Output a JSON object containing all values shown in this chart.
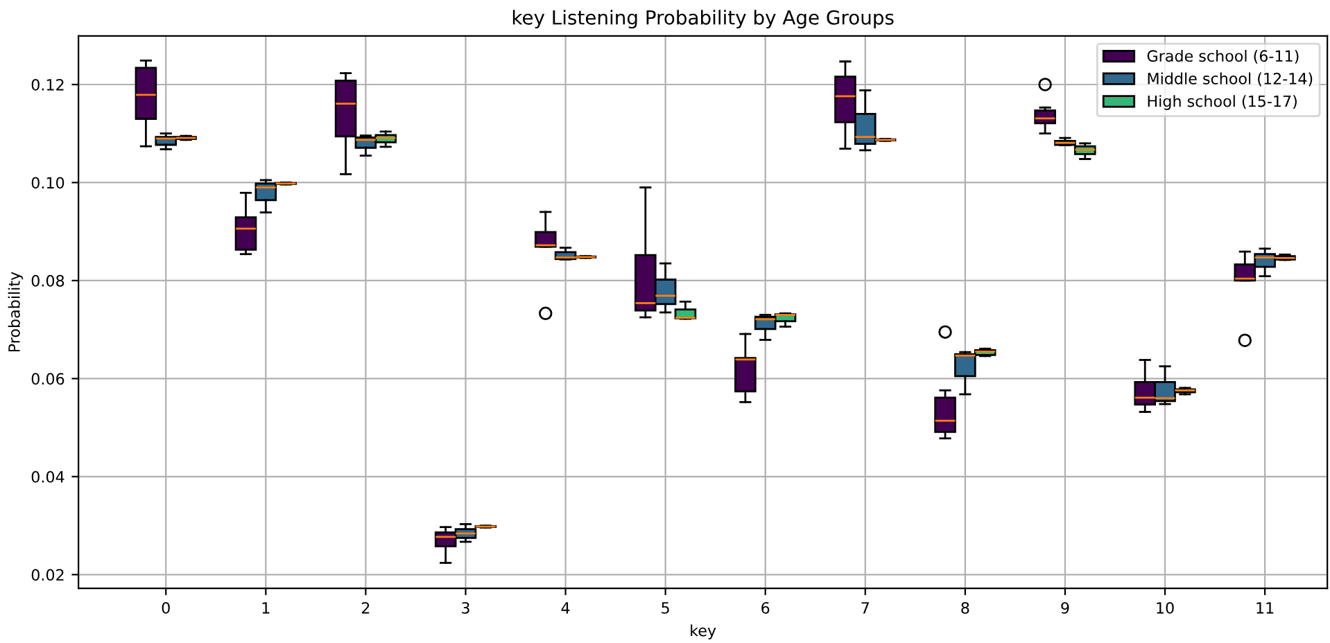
{
  "chart_data": {
    "type": "box",
    "title": "key Listening Probability by Age Groups",
    "xlabel": "key",
    "ylabel": "Probability",
    "categories": [
      "0",
      "1",
      "2",
      "3",
      "4",
      "5",
      "6",
      "7",
      "8",
      "9",
      "10",
      "11"
    ],
    "ylim": [
      0.0172,
      0.1299
    ],
    "yticks": [
      0.02,
      0.04,
      0.06,
      0.08,
      {
        "value": 0.1,
        "label": "0.10"
      },
      0.12
    ],
    "grid": true,
    "legend": "top right",
    "series": [
      {
        "name": "Grade school (6-11)",
        "color": "#440154",
        "boxes": [
          {
            "low": 0.1074,
            "q1": 0.113,
            "median": 0.1179,
            "q3": 0.1234,
            "high": 0.1249
          },
          {
            "low": 0.0854,
            "q1": 0.0863,
            "median": 0.0906,
            "q3": 0.0929,
            "high": 0.0979
          },
          {
            "low": 0.1017,
            "q1": 0.1094,
            "median": 0.1161,
            "q3": 0.1208,
            "high": 0.1223
          },
          {
            "low": 0.0224,
            "q1": 0.0258,
            "median": 0.0277,
            "q3": 0.0286,
            "high": 0.0297
          },
          {
            "low": 0.0869,
            "q1": 0.0869,
            "median": 0.0872,
            "q3": 0.0899,
            "high": 0.094,
            "outliers": [
              0.0733
            ]
          },
          {
            "low": 0.0725,
            "q1": 0.0739,
            "median": 0.0754,
            "q3": 0.0852,
            "high": 0.099
          },
          {
            "low": 0.0552,
            "q1": 0.0574,
            "median": 0.0639,
            "q3": 0.0642,
            "high": 0.0691
          },
          {
            "low": 0.1069,
            "q1": 0.1123,
            "median": 0.1176,
            "q3": 0.1216,
            "high": 0.1247
          },
          {
            "low": 0.0478,
            "q1": 0.0491,
            "median": 0.0514,
            "q3": 0.0561,
            "high": 0.0576,
            "outliers": [
              0.0695
            ]
          },
          {
            "low": 0.11,
            "q1": 0.1121,
            "median": 0.1131,
            "q3": 0.1147,
            "high": 0.1153,
            "outliers": [
              0.12
            ]
          },
          {
            "low": 0.0532,
            "q1": 0.0547,
            "median": 0.0561,
            "q3": 0.0593,
            "high": 0.0638
          },
          {
            "low": 0.08,
            "q1": 0.08,
            "median": 0.0804,
            "q3": 0.0833,
            "high": 0.0859,
            "outliers": [
              0.0678
            ]
          }
        ]
      },
      {
        "name": "Middle school (12-14)",
        "color": "#31688e",
        "boxes": [
          {
            "low": 0.1068,
            "q1": 0.1077,
            "median": 0.109,
            "q3": 0.1093,
            "high": 0.11
          },
          {
            "low": 0.0939,
            "q1": 0.0964,
            "median": 0.099,
            "q3": 0.0998,
            "high": 0.1005
          },
          {
            "low": 0.1055,
            "q1": 0.1071,
            "median": 0.1087,
            "q3": 0.1092,
            "high": 0.1096
          },
          {
            "low": 0.0267,
            "q1": 0.0275,
            "median": 0.0284,
            "q3": 0.0293,
            "high": 0.0303
          },
          {
            "low": 0.0843,
            "q1": 0.0844,
            "median": 0.0847,
            "q3": 0.0858,
            "high": 0.0867
          },
          {
            "low": 0.0735,
            "q1": 0.0752,
            "median": 0.0769,
            "q3": 0.0802,
            "high": 0.0835
          },
          {
            "low": 0.0679,
            "q1": 0.0701,
            "median": 0.0721,
            "q3": 0.0726,
            "high": 0.073
          },
          {
            "low": 0.1066,
            "q1": 0.1079,
            "median": 0.1093,
            "q3": 0.114,
            "high": 0.1188
          },
          {
            "low": 0.0568,
            "q1": 0.0605,
            "median": 0.0647,
            "q3": 0.065,
            "high": 0.0654
          },
          {
            "low": 0.1076,
            "q1": 0.1077,
            "median": 0.1081,
            "q3": 0.1085,
            "high": 0.1091
          },
          {
            "low": 0.0548,
            "q1": 0.0554,
            "median": 0.056,
            "q3": 0.0593,
            "high": 0.0625
          },
          {
            "low": 0.0809,
            "q1": 0.0828,
            "median": 0.0847,
            "q3": 0.0854,
            "high": 0.0865
          }
        ]
      },
      {
        "name": "High school (15-17)",
        "color": "#35b779",
        "boxes": [
          {
            "low": 0.1087,
            "q1": 0.1089,
            "median": 0.1091,
            "q3": 0.1093,
            "high": 0.1095
          },
          {
            "low": 0.0996,
            "q1": 0.0997,
            "median": 0.0998,
            "q3": 0.0999,
            "high": 0.1
          },
          {
            "low": 0.1073,
            "q1": 0.1082,
            "median": 0.1091,
            "q3": 0.1097,
            "high": 0.1104
          },
          {
            "low": 0.0296,
            "q1": 0.0297,
            "median": 0.0298,
            "q3": 0.0299,
            "high": 0.03
          },
          {
            "low": 0.0846,
            "q1": 0.0847,
            "median": 0.0848,
            "q3": 0.0849,
            "high": 0.085
          },
          {
            "low": 0.0722,
            "q1": 0.0723,
            "median": 0.0724,
            "q3": 0.0741,
            "high": 0.0757
          },
          {
            "low": 0.0706,
            "q1": 0.0717,
            "median": 0.073,
            "q3": 0.0731,
            "high": 0.0733
          },
          {
            "low": 0.1085,
            "q1": 0.1086,
            "median": 0.1087,
            "q3": 0.1088,
            "high": 0.1089
          },
          {
            "low": 0.0646,
            "q1": 0.0648,
            "median": 0.0655,
            "q3": 0.0658,
            "high": 0.0661
          },
          {
            "low": 0.1048,
            "q1": 0.1058,
            "median": 0.1067,
            "q3": 0.1074,
            "high": 0.108
          },
          {
            "low": 0.0568,
            "q1": 0.0572,
            "median": 0.0576,
            "q3": 0.0578,
            "high": 0.0581
          },
          {
            "low": 0.0842,
            "q1": 0.0843,
            "median": 0.0846,
            "q3": 0.085,
            "high": 0.0853
          }
        ]
      }
    ]
  }
}
